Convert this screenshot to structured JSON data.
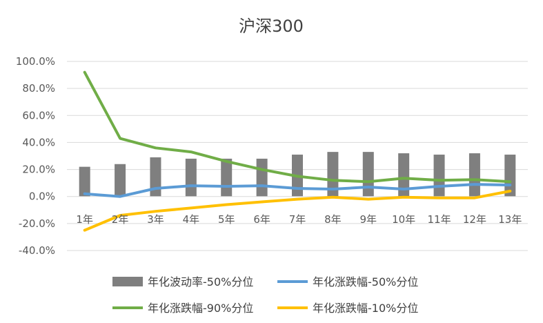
{
  "chart_data": {
    "type": "bar+line",
    "title": "沪深300",
    "categories": [
      "1年",
      "2年",
      "3年",
      "4年",
      "5年",
      "6年",
      "7年",
      "8年",
      "9年",
      "10年",
      "11年",
      "12年",
      "13年"
    ],
    "ylim": [
      -0.4,
      1.0
    ],
    "yticks": [
      1.0,
      0.8,
      0.6,
      0.4,
      0.2,
      0.0,
      -0.2,
      -0.4
    ],
    "ytick_labels": [
      "100.0%",
      "80.0%",
      "60.0%",
      "40.0%",
      "20.0%",
      "0.0%",
      "-20.0%",
      "-40.0%"
    ],
    "grid": true,
    "legend_position": "bottom",
    "series": [
      {
        "name": "年化波动率-50%分位",
        "kind": "bar",
        "color": "#7f7f7f",
        "values": [
          0.22,
          0.24,
          0.29,
          0.28,
          0.28,
          0.28,
          0.31,
          0.33,
          0.33,
          0.32,
          0.31,
          0.32,
          0.31
        ]
      },
      {
        "name": "年化涨跌幅-50%分位",
        "kind": "line",
        "color": "#5b9bd5",
        "values": [
          0.02,
          0.0,
          0.06,
          0.08,
          0.075,
          0.08,
          0.06,
          0.055,
          0.07,
          0.055,
          0.075,
          0.09,
          0.085
        ]
      },
      {
        "name": "年化涨跌幅-90%分位",
        "kind": "line",
        "color": "#70ad47",
        "values": [
          0.92,
          0.43,
          0.36,
          0.33,
          0.26,
          0.2,
          0.15,
          0.12,
          0.11,
          0.135,
          0.12,
          0.125,
          0.11
        ]
      },
      {
        "name": "年化涨跌幅-10%分位",
        "kind": "line",
        "color": "#ffc000",
        "values": [
          -0.25,
          -0.14,
          -0.11,
          -0.085,
          -0.06,
          -0.04,
          -0.02,
          -0.005,
          -0.02,
          -0.005,
          -0.01,
          -0.01,
          0.04
        ]
      }
    ],
    "legend_order": [
      0,
      1,
      2,
      3
    ]
  }
}
